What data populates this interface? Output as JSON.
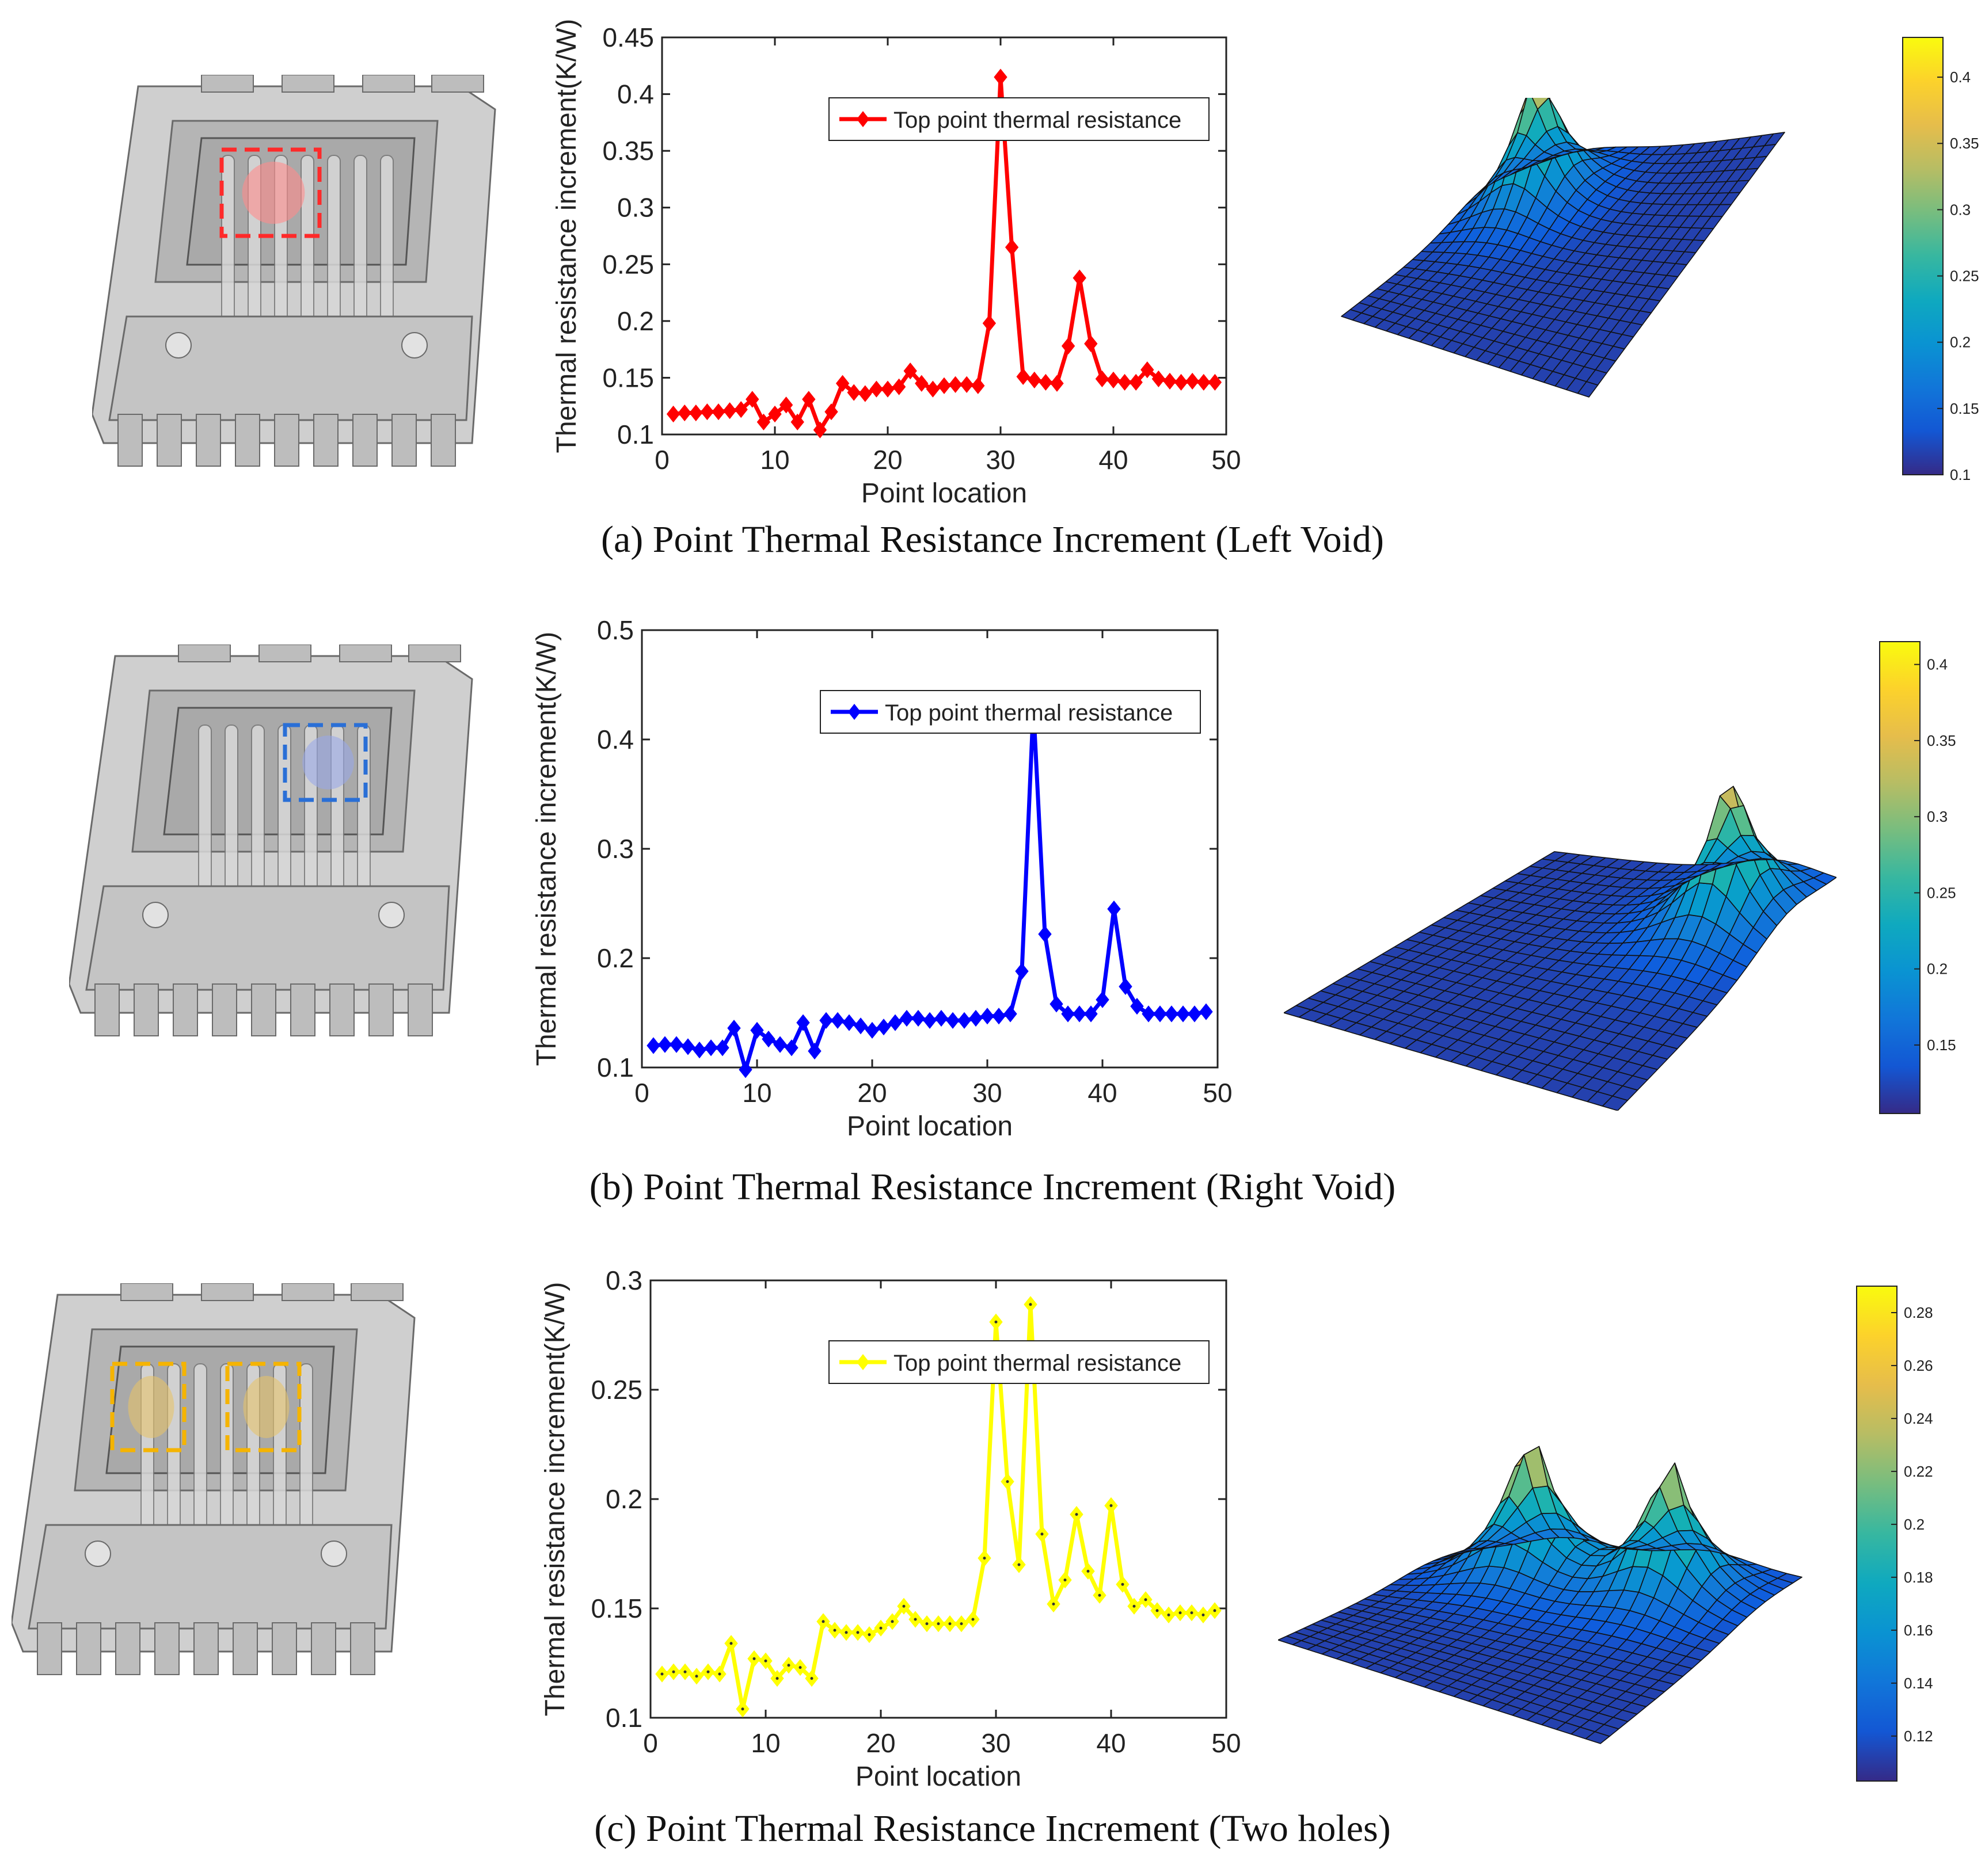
{
  "panels": [
    {
      "id": "a",
      "caption": "(a) Point Thermal Resistance Increment (Left Void)",
      "highlight": "left",
      "colors": {
        "line": "#ff0000",
        "marker": "#ff0000",
        "box": "#ff2a2a",
        "void": "#ff8c8c"
      },
      "chart_data": {
        "type": "line",
        "series": [
          {
            "name": "Top point thermal resistance",
            "values": [
              0.118,
              0.119,
              0.119,
              0.12,
              0.12,
              0.121,
              0.122,
              0.131,
              0.111,
              0.118,
              0.126,
              0.111,
              0.131,
              0.104,
              0.12,
              0.145,
              0.137,
              0.136,
              0.14,
              0.14,
              0.142,
              0.156,
              0.145,
              0.14,
              0.143,
              0.144,
              0.144,
              0.143,
              0.198,
              0.415,
              0.265,
              0.151,
              0.148,
              0.146,
              0.145,
              0.178,
              0.238,
              0.18,
              0.149,
              0.148,
              0.146,
              0.146,
              0.157,
              0.149,
              0.147,
              0.146,
              0.147,
              0.146,
              0.146
            ]
          }
        ],
        "x": [
          1,
          2,
          3,
          4,
          5,
          6,
          7,
          8,
          9,
          10,
          11,
          12,
          13,
          14,
          15,
          16,
          17,
          18,
          19,
          20,
          21,
          22,
          23,
          24,
          25,
          26,
          27,
          28,
          29,
          30,
          31,
          32,
          33,
          34,
          35,
          36,
          37,
          38,
          39,
          40,
          41,
          42,
          43,
          44,
          45,
          46,
          47,
          48,
          49
        ],
        "xlabel": "Point location",
        "ylabel": "Thermal resistance increment(K/W)",
        "xlim": [
          0,
          50
        ],
        "ylim": [
          0.1,
          0.45
        ],
        "xticks": [
          0,
          10,
          20,
          30,
          40,
          50
        ],
        "yticks": [
          0.1,
          0.15,
          0.2,
          0.25,
          0.3,
          0.35,
          0.4,
          0.45
        ],
        "ytick_labels": [
          "0.1",
          "0.15",
          "0.2",
          "0.25",
          "0.3",
          "0.35",
          "0.4",
          "0.45"
        ],
        "legend": "top-right"
      },
      "colorbar": {
        "min": 0.1,
        "max": 0.43,
        "ticks": [
          0.1,
          0.15,
          0.2,
          0.25,
          0.3,
          0.35,
          0.4
        ],
        "tick_labels": [
          "0.1",
          "0.15",
          "0.2",
          "0.25",
          "0.3",
          "0.35",
          "0.4"
        ]
      }
    },
    {
      "id": "b",
      "caption": "(b) Point Thermal Resistance Increment (Right Void)",
      "highlight": "right",
      "colors": {
        "line": "#0000ff",
        "marker": "#0000ff",
        "box": "#2a6fd6",
        "void": "#9aa8e8"
      },
      "chart_data": {
        "type": "line",
        "series": [
          {
            "name": "Top point thermal resistance",
            "values": [
              0.12,
              0.121,
              0.121,
              0.119,
              0.116,
              0.118,
              0.118,
              0.136,
              0.098,
              0.134,
              0.126,
              0.121,
              0.118,
              0.141,
              0.115,
              0.143,
              0.143,
              0.141,
              0.138,
              0.134,
              0.137,
              0.141,
              0.145,
              0.145,
              0.143,
              0.145,
              0.143,
              0.143,
              0.145,
              0.147,
              0.147,
              0.149,
              0.188,
              0.43,
              0.222,
              0.158,
              0.149,
              0.149,
              0.149,
              0.162,
              0.245,
              0.174,
              0.156,
              0.149,
              0.149,
              0.149,
              0.149,
              0.149,
              0.151
            ]
          }
        ],
        "x": [
          1,
          2,
          3,
          4,
          5,
          6,
          7,
          8,
          9,
          10,
          11,
          12,
          13,
          14,
          15,
          16,
          17,
          18,
          19,
          20,
          21,
          22,
          23,
          24,
          25,
          26,
          27,
          28,
          29,
          30,
          31,
          32,
          33,
          34,
          35,
          36,
          37,
          38,
          39,
          40,
          41,
          42,
          43,
          44,
          45,
          46,
          47,
          48,
          49
        ],
        "xlabel": "Point location",
        "ylabel": "Thermal resistance increment(K/W)",
        "xlim": [
          0,
          50
        ],
        "ylim": [
          0.1,
          0.5
        ],
        "xticks": [
          0,
          10,
          20,
          30,
          40,
          50
        ],
        "yticks": [
          0.1,
          0.2,
          0.3,
          0.4,
          0.5
        ],
        "ytick_labels": [
          "0.1",
          "0.2",
          "0.3",
          "0.4",
          "0.5"
        ],
        "legend": "top-right"
      },
      "colorbar": {
        "min": 0.105,
        "max": 0.415,
        "ticks": [
          0.15,
          0.2,
          0.25,
          0.3,
          0.35,
          0.4
        ],
        "tick_labels": [
          "0.15",
          "0.2",
          "0.25",
          "0.3",
          "0.35",
          "0.4"
        ]
      }
    },
    {
      "id": "c",
      "caption": "(c) Point Thermal Resistance Increment (Two holes)",
      "highlight": "both",
      "colors": {
        "line": "#ffff00",
        "marker": "#ffff00",
        "box": "#f5b400",
        "void": "#e6c36a"
      },
      "chart_data": {
        "type": "line",
        "series": [
          {
            "name": "Top point thermal resistance",
            "values": [
              0.12,
              0.121,
              0.121,
              0.119,
              0.121,
              0.12,
              0.134,
              0.104,
              0.127,
              0.126,
              0.118,
              0.124,
              0.123,
              0.118,
              0.144,
              0.14,
              0.139,
              0.139,
              0.138,
              0.141,
              0.144,
              0.151,
              0.145,
              0.143,
              0.143,
              0.143,
              0.143,
              0.145,
              0.173,
              0.281,
              0.208,
              0.17,
              0.289,
              0.184,
              0.152,
              0.163,
              0.193,
              0.167,
              0.156,
              0.197,
              0.161,
              0.151,
              0.154,
              0.149,
              0.147,
              0.148,
              0.148,
              0.147,
              0.149
            ]
          }
        ],
        "x": [
          1,
          2,
          3,
          4,
          5,
          6,
          7,
          8,
          9,
          10,
          11,
          12,
          13,
          14,
          15,
          16,
          17,
          18,
          19,
          20,
          21,
          22,
          23,
          24,
          25,
          26,
          27,
          28,
          29,
          30,
          31,
          32,
          33,
          34,
          35,
          36,
          37,
          38,
          39,
          40,
          41,
          42,
          43,
          44,
          45,
          46,
          47,
          48,
          49
        ],
        "xlabel": "Point location",
        "ylabel": "Thermal resistance increment(K/W)",
        "xlim": [
          0,
          50
        ],
        "ylim": [
          0.1,
          0.3
        ],
        "xticks": [
          0,
          10,
          20,
          30,
          40,
          50
        ],
        "yticks": [
          0.1,
          0.15,
          0.2,
          0.25,
          0.3
        ],
        "ytick_labels": [
          "0.1",
          "0.15",
          "0.2",
          "0.25",
          "0.3"
        ],
        "legend": "top-right"
      },
      "colorbar": {
        "min": 0.103,
        "max": 0.29,
        "ticks": [
          0.12,
          0.14,
          0.16,
          0.18,
          0.2,
          0.22,
          0.24,
          0.26,
          0.28
        ],
        "tick_labels": [
          "0.12",
          "0.14",
          "0.16",
          "0.18",
          "0.2",
          "0.22",
          "0.24",
          "0.26",
          "0.28"
        ]
      }
    }
  ]
}
